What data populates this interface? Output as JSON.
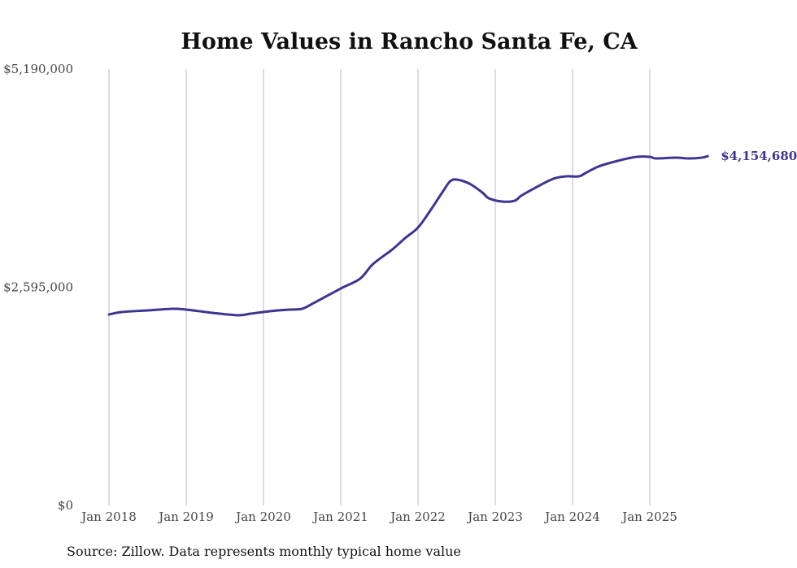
{
  "chart_data": {
    "type": "line",
    "title": "Home Values in Rancho Santa Fe, CA",
    "source": "Source: Zillow. Data represents monthly typical home value",
    "xlabel": "",
    "ylabel": "",
    "ylim": [
      0,
      5190000
    ],
    "y_ticks": [
      {
        "value": 0,
        "label": "$0"
      },
      {
        "value": 2595000,
        "label": "$2,595,000"
      },
      {
        "value": 5190000,
        "label": "$5,190,000"
      }
    ],
    "x_ticks": [
      {
        "date": "2018-01",
        "label": "Jan 2018"
      },
      {
        "date": "2019-01",
        "label": "Jan 2019"
      },
      {
        "date": "2020-01",
        "label": "Jan 2020"
      },
      {
        "date": "2021-01",
        "label": "Jan 2021"
      },
      {
        "date": "2022-01",
        "label": "Jan 2022"
      },
      {
        "date": "2023-01",
        "label": "Jan 2023"
      },
      {
        "date": "2024-01",
        "label": "Jan 2024"
      },
      {
        "date": "2025-01",
        "label": "Jan 2025"
      }
    ],
    "grid": "vertical",
    "line_color": "#3d3591",
    "end_label": "$4,154,680",
    "series": [
      {
        "name": "Typical home value",
        "points": [
          [
            "2018-01",
            2271000
          ],
          [
            "2018-03",
            2300000
          ],
          [
            "2018-07",
            2320000
          ],
          [
            "2018-11",
            2339000
          ],
          [
            "2019-01",
            2329000
          ],
          [
            "2019-05",
            2291000
          ],
          [
            "2019-09",
            2262000
          ],
          [
            "2019-11",
            2281000
          ],
          [
            "2020-02",
            2310000
          ],
          [
            "2020-05",
            2329000
          ],
          [
            "2020-07",
            2339000
          ],
          [
            "2020-09",
            2416000
          ],
          [
            "2021-01",
            2580000
          ],
          [
            "2021-04",
            2697000
          ],
          [
            "2021-06",
            2870000
          ],
          [
            "2021-09",
            3044000
          ],
          [
            "2021-11",
            3180000
          ],
          [
            "2022-01",
            3305000
          ],
          [
            "2022-03",
            3518000
          ],
          [
            "2022-05",
            3750000
          ],
          [
            "2022-06",
            3856000
          ],
          [
            "2022-07",
            3876000
          ],
          [
            "2022-09",
            3827000
          ],
          [
            "2022-11",
            3721000
          ],
          [
            "2022-12",
            3653000
          ],
          [
            "2023-02",
            3615000
          ],
          [
            "2023-04",
            3624000
          ],
          [
            "2023-05",
            3682000
          ],
          [
            "2023-07",
            3769000
          ],
          [
            "2023-10",
            3885000
          ],
          [
            "2023-12",
            3914000
          ],
          [
            "2024-02",
            3914000
          ],
          [
            "2024-03",
            3953000
          ],
          [
            "2024-05",
            4030000
          ],
          [
            "2024-07",
            4078000
          ],
          [
            "2024-09",
            4117000
          ],
          [
            "2024-11",
            4146000
          ],
          [
            "2025-01",
            4146000
          ],
          [
            "2025-02",
            4127000
          ],
          [
            "2025-05",
            4136000
          ],
          [
            "2025-07",
            4127000
          ],
          [
            "2025-09",
            4136000
          ],
          [
            "2025-10",
            4154680
          ]
        ]
      }
    ]
  }
}
